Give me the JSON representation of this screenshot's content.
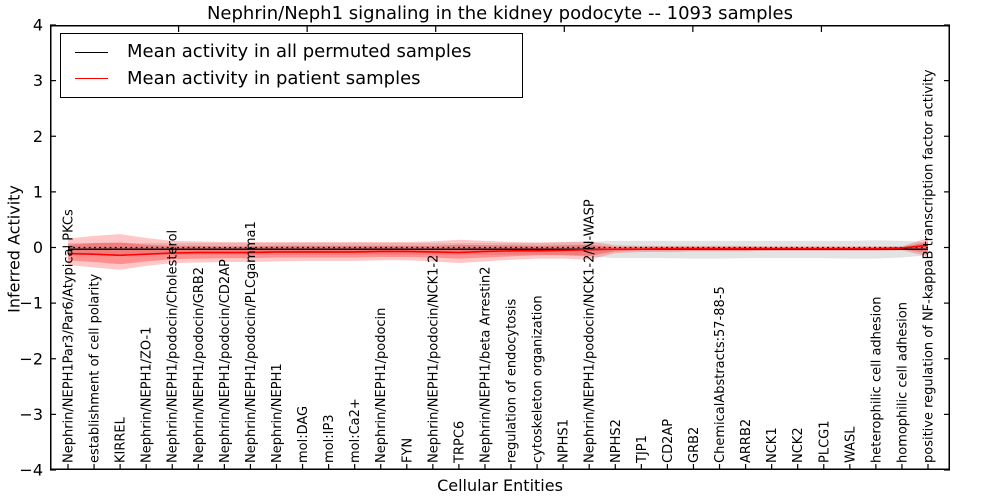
{
  "figure": {
    "title": "Nephrin/Neph1 signaling in the kidney podocyte -- 1093 samples",
    "xlabel": "Cellular Entities",
    "ylabel": "Inferred Activity"
  },
  "legend": {
    "position": "upper left",
    "items": [
      {
        "label": "Mean activity in all permuted samples",
        "color": "#000000"
      },
      {
        "label": "Mean activity in patient samples",
        "color": "#ff0000"
      }
    ]
  },
  "chart_data": {
    "type": "line",
    "title": "Nephrin/Neph1 signaling in the kidney podocyte -- 1093 samples",
    "xlabel": "Cellular Entities",
    "ylabel": "Inferred Activity",
    "ylim": [
      -4,
      4
    ],
    "yticks": [
      -4,
      -3,
      -2,
      -1,
      0,
      1,
      2,
      3,
      4
    ],
    "ytick_labels": [
      "−4",
      "−3",
      "−2",
      "−1",
      "0",
      "1",
      "2",
      "3",
      "4"
    ],
    "grid": false,
    "zero_reference_line": 0,
    "categories": [
      "Nephrin/NEPH1Par3/Par6/Atypical PKCs",
      "establishment of cell polarity",
      "KIRREL",
      "Nephrin/NEPH1/ZO-1",
      "Nephrin/NEPH1/podocin/Cholesterol",
      "Nephrin/NEPH1/podocin/GRB2",
      "Nephrin/NEPH1/podocin/CD2AP",
      "Nephrin/NEPH1/podocin/PLCgamma1",
      "Nephrin/NEPH1",
      "mol:DAG",
      "mol:IP3",
      "mol:Ca2+",
      "Nephrin/NEPH1/podocin",
      "FYN",
      "Nephrin/NEPH1/podocin/NCK1-2",
      "TRPC6",
      "Nephrin/NEPH1/beta Arrestin2",
      "regulation of endocytosis",
      "cytoskeleton organization",
      "NPHS1",
      "Nephrin/NEPH1/podocin/NCK1-2/N-WASP",
      "NPHS2",
      "TJP1",
      "CD2AP",
      "GRB2",
      "ChemicalAbstracts:57-88-5",
      "ARRB2",
      "NCK1",
      "NCK2",
      "PLCG1",
      "WASL",
      "heterophilic cell adhesion",
      "homophilic cell adhesion",
      "positive regulation of NF-kappaB transcription factor activity"
    ],
    "series": [
      {
        "name": "Mean activity in all permuted samples",
        "color": "#000000",
        "values": [
          -0.03,
          -0.03,
          -0.03,
          -0.03,
          -0.03,
          -0.03,
          -0.03,
          -0.03,
          -0.03,
          -0.03,
          -0.03,
          -0.03,
          -0.03,
          -0.03,
          -0.03,
          -0.03,
          -0.03,
          -0.03,
          -0.03,
          -0.03,
          -0.03,
          -0.03,
          -0.03,
          -0.03,
          -0.03,
          -0.03,
          -0.03,
          -0.03,
          -0.03,
          -0.03,
          -0.03,
          -0.03,
          -0.03,
          -0.03
        ]
      },
      {
        "name": "Mean activity in patient samples",
        "color": "#ff0000",
        "values": [
          -0.11,
          -0.12,
          -0.14,
          -0.12,
          -0.1,
          -0.09,
          -0.09,
          -0.09,
          -0.08,
          -0.08,
          -0.08,
          -0.08,
          -0.07,
          -0.07,
          -0.08,
          -0.09,
          -0.07,
          -0.06,
          -0.06,
          -0.05,
          -0.04,
          -0.03,
          -0.03,
          -0.02,
          -0.02,
          -0.02,
          -0.02,
          -0.02,
          -0.02,
          -0.02,
          -0.02,
          -0.02,
          -0.01,
          0.04
        ]
      }
    ],
    "bands": [
      {
        "name": "permuted-samples-band",
        "color": "rgba(0,0,0,0.11)",
        "upper": [
          0.08,
          0.08,
          0.08,
          0.08,
          0.08,
          0.08,
          0.08,
          0.08,
          0.08,
          0.08,
          0.08,
          0.08,
          0.08,
          0.08,
          0.08,
          0.08,
          0.08,
          0.08,
          0.08,
          0.09,
          0.1,
          0.12,
          0.12,
          0.12,
          0.12,
          0.12,
          0.12,
          0.12,
          0.12,
          0.12,
          0.12,
          0.13,
          0.12,
          0.1
        ],
        "lower": [
          -0.13,
          -0.13,
          -0.13,
          -0.13,
          -0.13,
          -0.13,
          -0.13,
          -0.13,
          -0.13,
          -0.13,
          -0.13,
          -0.13,
          -0.13,
          -0.13,
          -0.13,
          -0.13,
          -0.13,
          -0.13,
          -0.13,
          -0.14,
          -0.16,
          -0.19,
          -0.19,
          -0.19,
          -0.2,
          -0.2,
          -0.19,
          -0.19,
          -0.19,
          -0.19,
          -0.2,
          -0.2,
          -0.18,
          -0.14
        ]
      },
      {
        "name": "patient-samples-band-outer",
        "color": "rgba(255,0,0,0.22)",
        "upper": [
          0.16,
          0.21,
          0.24,
          0.17,
          0.12,
          0.11,
          0.1,
          0.1,
          0.1,
          0.1,
          0.1,
          0.1,
          0.1,
          0.1,
          0.11,
          0.14,
          0.12,
          0.1,
          0.09,
          0.1,
          0.11,
          0.04,
          0.03,
          0.03,
          0.03,
          0.03,
          0.03,
          0.02,
          0.02,
          0.02,
          0.02,
          0.02,
          0.02,
          0.17
        ],
        "lower": [
          -0.31,
          -0.36,
          -0.4,
          -0.33,
          -0.28,
          -0.27,
          -0.26,
          -0.26,
          -0.25,
          -0.24,
          -0.24,
          -0.24,
          -0.23,
          -0.23,
          -0.25,
          -0.28,
          -0.25,
          -0.22,
          -0.2,
          -0.2,
          -0.22,
          -0.1,
          -0.08,
          -0.08,
          -0.07,
          -0.07,
          -0.07,
          -0.06,
          -0.06,
          -0.06,
          -0.06,
          -0.06,
          -0.05,
          -0.16
        ]
      },
      {
        "name": "patient-samples-band-inner",
        "color": "rgba(255,0,0,0.28)",
        "upper": [
          0.05,
          0.08,
          0.09,
          0.05,
          0.03,
          0.03,
          0.02,
          0.02,
          0.03,
          0.03,
          0.03,
          0.03,
          0.03,
          0.03,
          0.03,
          0.05,
          0.04,
          0.04,
          0.03,
          0.04,
          0.05,
          0.01,
          0.01,
          0.01,
          0.01,
          0.01,
          0.01,
          0.0,
          0.0,
          0.0,
          0.0,
          0.0,
          0.01,
          0.1
        ],
        "lower": [
          -0.23,
          -0.26,
          -0.3,
          -0.25,
          -0.21,
          -0.2,
          -0.19,
          -0.19,
          -0.18,
          -0.18,
          -0.18,
          -0.18,
          -0.17,
          -0.17,
          -0.18,
          -0.2,
          -0.18,
          -0.16,
          -0.14,
          -0.14,
          -0.15,
          -0.07,
          -0.05,
          -0.05,
          -0.05,
          -0.05,
          -0.05,
          -0.04,
          -0.04,
          -0.04,
          -0.04,
          -0.04,
          -0.03,
          -0.1
        ]
      }
    ],
    "colors": {
      "patient_line": "#ff0000",
      "permuted_line": "#000000",
      "zero_line": "#000000",
      "spine": "#000000"
    }
  }
}
